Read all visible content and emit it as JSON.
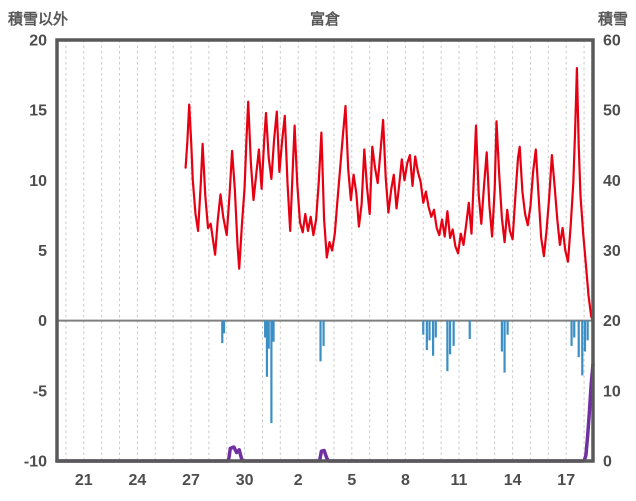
{
  "header": {
    "left_axis_title": "積雪以外",
    "title": "富倉",
    "right_axis_title": "積雪"
  },
  "chart_data": {
    "type": "line",
    "title": "富倉",
    "grid": "vertical-daily-dashed",
    "legend": "none",
    "left_axis": {
      "label": "積雪以外",
      "range": [
        -10,
        20
      ],
      "ticks": [
        -10,
        -5,
        0,
        5,
        10,
        15,
        20
      ]
    },
    "right_axis": {
      "label": "積雪",
      "range": [
        0,
        60
      ],
      "ticks": [
        0,
        10,
        20,
        30,
        40,
        50,
        60
      ]
    },
    "x_axis": {
      "range": [
        19.5,
        49.5
      ],
      "tick_positions": [
        21,
        24,
        27,
        30,
        33,
        36,
        39,
        42,
        45,
        48
      ],
      "tick_labels": [
        "21",
        "24",
        "27",
        "30",
        "2",
        "5",
        "8",
        "11",
        "14",
        "17"
      ]
    },
    "zero_line": {
      "value": 0,
      "axis": "left",
      "color": "#7f7f7f"
    },
    "series": [
      {
        "name": "temperature",
        "axis": "left",
        "type": "line",
        "color": "#e60012",
        "width": 2.2,
        "points": [
          [
            26.7,
            10.9
          ],
          [
            26.8,
            12.8
          ],
          [
            26.9,
            15.4
          ],
          [
            27.0,
            13.0
          ],
          [
            27.1,
            10.0
          ],
          [
            27.25,
            7.6
          ],
          [
            27.4,
            6.4
          ],
          [
            27.55,
            9.8
          ],
          [
            27.65,
            12.6
          ],
          [
            27.8,
            8.9
          ],
          [
            27.95,
            6.6
          ],
          [
            28.1,
            6.9
          ],
          [
            28.35,
            4.7
          ],
          [
            28.5,
            7.2
          ],
          [
            28.65,
            9.0
          ],
          [
            28.8,
            7.4
          ],
          [
            29.0,
            6.1
          ],
          [
            29.15,
            8.8
          ],
          [
            29.3,
            12.1
          ],
          [
            29.45,
            9.4
          ],
          [
            29.6,
            5.4
          ],
          [
            29.7,
            3.7
          ],
          [
            29.85,
            6.8
          ],
          [
            30.0,
            9.5
          ],
          [
            30.1,
            12.8
          ],
          [
            30.2,
            15.6
          ],
          [
            30.35,
            11.2
          ],
          [
            30.5,
            8.6
          ],
          [
            30.65,
            10.4
          ],
          [
            30.8,
            12.2
          ],
          [
            30.95,
            9.4
          ],
          [
            31.1,
            13.0
          ],
          [
            31.2,
            14.8
          ],
          [
            31.35,
            11.6
          ],
          [
            31.5,
            10.1
          ],
          [
            31.65,
            12.9
          ],
          [
            31.8,
            14.9
          ],
          [
            31.95,
            10.6
          ],
          [
            32.1,
            12.8
          ],
          [
            32.25,
            14.6
          ],
          [
            32.4,
            9.8
          ],
          [
            32.55,
            6.4
          ],
          [
            32.7,
            10.9
          ],
          [
            32.8,
            13.9
          ],
          [
            32.95,
            9.7
          ],
          [
            33.1,
            7.0
          ],
          [
            33.25,
            6.3
          ],
          [
            33.4,
            7.6
          ],
          [
            33.55,
            6.4
          ],
          [
            33.7,
            7.4
          ],
          [
            33.85,
            6.1
          ],
          [
            34.0,
            7.2
          ],
          [
            34.15,
            9.8
          ],
          [
            34.3,
            13.4
          ],
          [
            34.45,
            7.2
          ],
          [
            34.6,
            4.5
          ],
          [
            34.75,
            5.6
          ],
          [
            34.9,
            5.0
          ],
          [
            35.05,
            6.2
          ],
          [
            35.2,
            8.6
          ],
          [
            35.35,
            10.9
          ],
          [
            35.5,
            13.2
          ],
          [
            35.65,
            15.3
          ],
          [
            35.8,
            10.8
          ],
          [
            35.95,
            8.6
          ],
          [
            36.1,
            10.4
          ],
          [
            36.25,
            9.1
          ],
          [
            36.4,
            6.7
          ],
          [
            36.55,
            8.3
          ],
          [
            36.7,
            12.2
          ],
          [
            36.85,
            9.5
          ],
          [
            37.0,
            7.6
          ],
          [
            37.15,
            12.4
          ],
          [
            37.3,
            10.9
          ],
          [
            37.45,
            9.8
          ],
          [
            37.6,
            12.0
          ],
          [
            37.75,
            14.3
          ],
          [
            37.9,
            10.2
          ],
          [
            38.05,
            7.7
          ],
          [
            38.2,
            9.3
          ],
          [
            38.35,
            10.4
          ],
          [
            38.5,
            8.0
          ],
          [
            38.65,
            9.6
          ],
          [
            38.8,
            11.5
          ],
          [
            38.95,
            10.0
          ],
          [
            39.1,
            11.2
          ],
          [
            39.25,
            11.8
          ],
          [
            39.4,
            9.6
          ],
          [
            39.55,
            11.7
          ],
          [
            39.7,
            10.6
          ],
          [
            39.85,
            9.9
          ],
          [
            40.0,
            8.4
          ],
          [
            40.15,
            9.2
          ],
          [
            40.3,
            8.1
          ],
          [
            40.45,
            7.4
          ],
          [
            40.6,
            7.9
          ],
          [
            40.75,
            6.6
          ],
          [
            40.9,
            6.1
          ],
          [
            41.05,
            7.2
          ],
          [
            41.2,
            6.0
          ],
          [
            41.35,
            7.8
          ],
          [
            41.5,
            5.9
          ],
          [
            41.65,
            6.5
          ],
          [
            41.8,
            5.3
          ],
          [
            41.95,
            4.8
          ],
          [
            42.1,
            6.2
          ],
          [
            42.25,
            5.4
          ],
          [
            42.4,
            6.8
          ],
          [
            42.55,
            8.4
          ],
          [
            42.7,
            6.2
          ],
          [
            42.85,
            10.8
          ],
          [
            42.95,
            13.9
          ],
          [
            43.1,
            9.0
          ],
          [
            43.25,
            6.9
          ],
          [
            43.4,
            9.6
          ],
          [
            43.55,
            12.0
          ],
          [
            43.7,
            8.2
          ],
          [
            43.85,
            6.0
          ],
          [
            44.0,
            9.4
          ],
          [
            44.1,
            14.2
          ],
          [
            44.25,
            10.4
          ],
          [
            44.4,
            7.3
          ],
          [
            44.55,
            5.6
          ],
          [
            44.7,
            7.9
          ],
          [
            44.85,
            6.4
          ],
          [
            45.0,
            5.8
          ],
          [
            45.15,
            8.8
          ],
          [
            45.3,
            11.6
          ],
          [
            45.4,
            12.4
          ],
          [
            45.55,
            9.2
          ],
          [
            45.7,
            7.6
          ],
          [
            45.85,
            6.8
          ],
          [
            46.0,
            8.2
          ],
          [
            46.15,
            10.6
          ],
          [
            46.3,
            12.2
          ],
          [
            46.45,
            9.0
          ],
          [
            46.6,
            5.9
          ],
          [
            46.75,
            4.6
          ],
          [
            46.9,
            6.4
          ],
          [
            47.05,
            8.8
          ],
          [
            47.2,
            11.8
          ],
          [
            47.35,
            9.6
          ],
          [
            47.5,
            7.2
          ],
          [
            47.65,
            5.4
          ],
          [
            47.8,
            6.6
          ],
          [
            47.95,
            5.0
          ],
          [
            48.1,
            4.2
          ],
          [
            48.25,
            6.8
          ],
          [
            48.4,
            9.8
          ],
          [
            48.5,
            13.5
          ],
          [
            48.6,
            18.0
          ],
          [
            48.7,
            12.5
          ],
          [
            48.8,
            8.9
          ],
          [
            48.95,
            6.2
          ],
          [
            49.1,
            4.0
          ],
          [
            49.25,
            1.8
          ],
          [
            49.4,
            0.3
          ],
          [
            49.5,
            0.0
          ]
        ]
      },
      {
        "name": "precipitation",
        "axis": "left",
        "type": "bar-down",
        "color": "#3b8fc4",
        "bar_width": 2.2,
        "points": [
          [
            28.75,
            -1.6
          ],
          [
            28.85,
            -0.9
          ],
          [
            31.15,
            -1.2
          ],
          [
            31.25,
            -4.0
          ],
          [
            31.35,
            -2.0
          ],
          [
            31.5,
            -7.3
          ],
          [
            31.62,
            -1.5
          ],
          [
            34.25,
            -2.9
          ],
          [
            34.42,
            -1.8
          ],
          [
            40.0,
            -1.0
          ],
          [
            40.2,
            -2.1
          ],
          [
            40.35,
            -1.4
          ],
          [
            40.55,
            -2.5
          ],
          [
            40.7,
            -1.2
          ],
          [
            41.35,
            -3.6
          ],
          [
            41.5,
            -2.4
          ],
          [
            41.7,
            -1.8
          ],
          [
            42.6,
            -1.3
          ],
          [
            44.4,
            -2.2
          ],
          [
            44.55,
            -3.7
          ],
          [
            44.72,
            -1.0
          ],
          [
            48.3,
            -1.8
          ],
          [
            48.45,
            -1.2
          ],
          [
            48.7,
            -2.6
          ],
          [
            48.9,
            -3.9
          ],
          [
            49.05,
            -2.2
          ],
          [
            49.2,
            -1.4
          ]
        ]
      },
      {
        "name": "snow-depth",
        "axis": "right",
        "type": "line",
        "color": "#7030a0",
        "width": 3.5,
        "points": [
          [
            19.5,
            0
          ],
          [
            29.1,
            0
          ],
          [
            29.2,
            1.8
          ],
          [
            29.4,
            2.0
          ],
          [
            29.55,
            1.2
          ],
          [
            29.7,
            1.6
          ],
          [
            29.82,
            0.4
          ],
          [
            29.9,
            0
          ],
          [
            34.2,
            0
          ],
          [
            34.3,
            1.4
          ],
          [
            34.45,
            1.5
          ],
          [
            34.6,
            0.4
          ],
          [
            34.7,
            0
          ],
          [
            49.0,
            0
          ],
          [
            49.1,
            0.8
          ],
          [
            49.2,
            3.5
          ],
          [
            49.3,
            7.0
          ],
          [
            49.4,
            11.0
          ],
          [
            49.5,
            13.8
          ]
        ]
      }
    ],
    "colors": {
      "border": "#595959",
      "gridline": "#c9c9c9",
      "zero_line": "#7f7f7f",
      "tick_label": "#4d4d4d",
      "header_label": "#595959",
      "background": "#ffffff"
    }
  }
}
